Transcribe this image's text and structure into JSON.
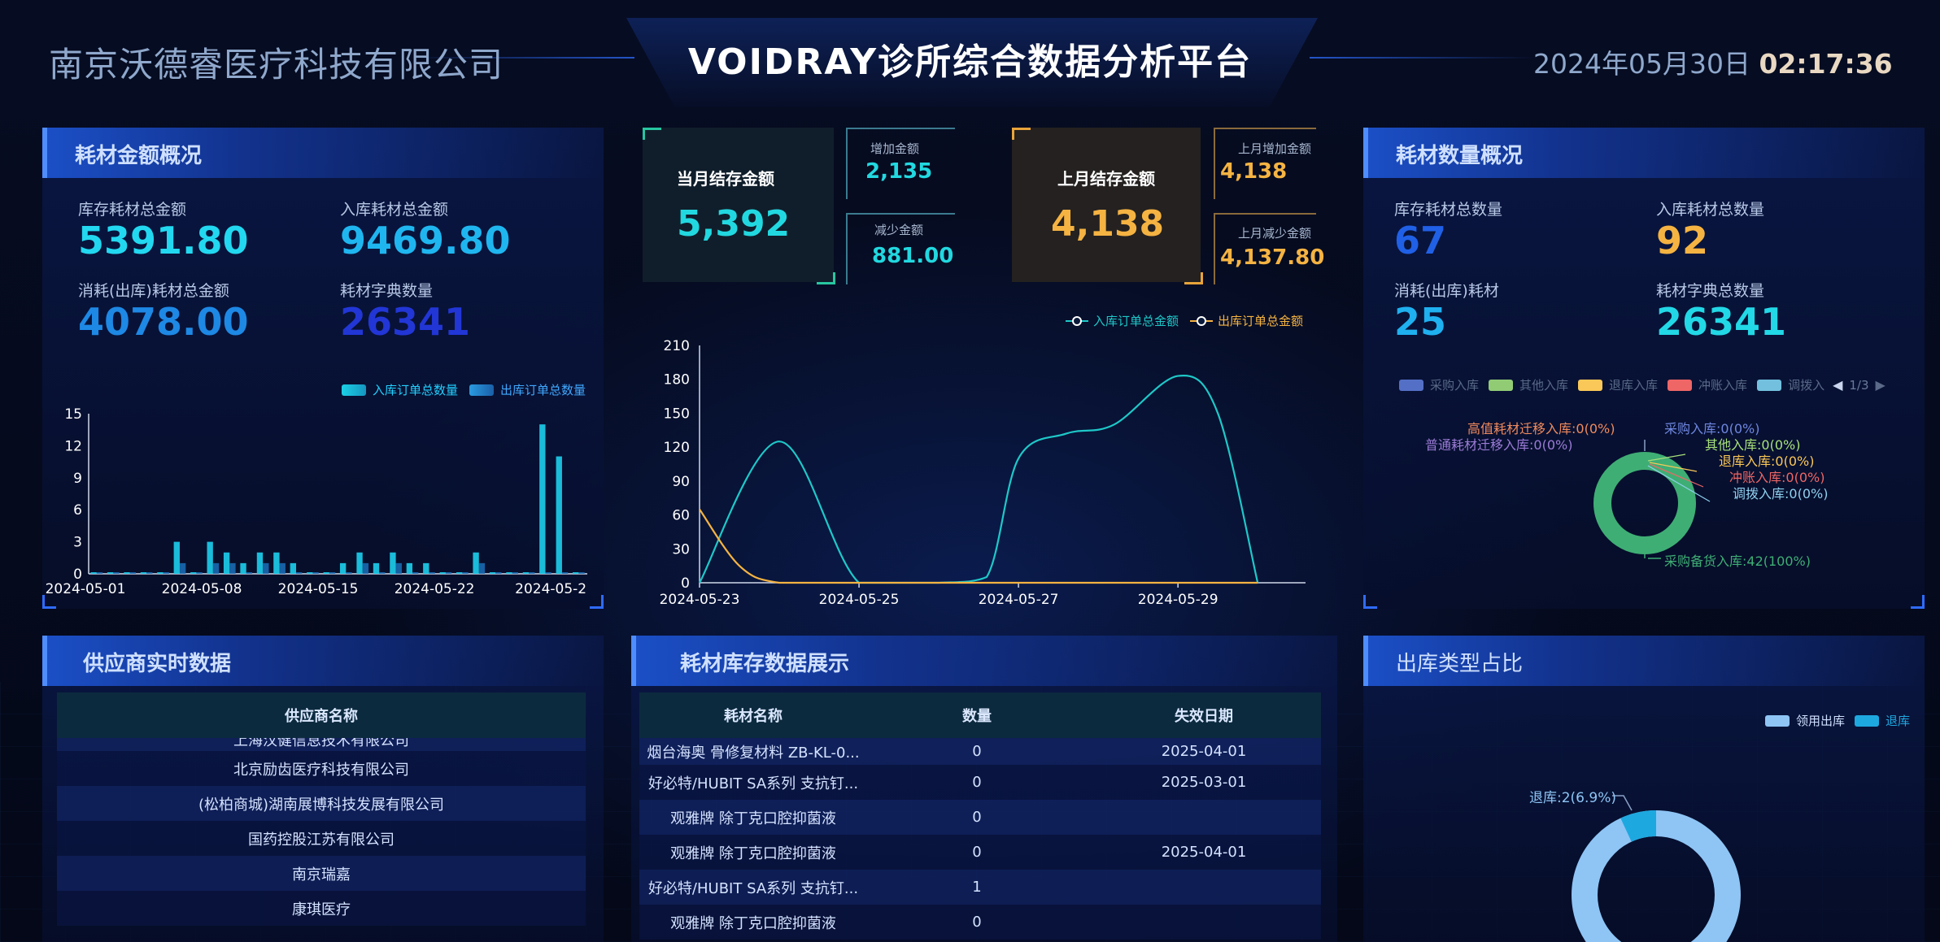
{
  "header": {
    "company": "南京沃德睿医疗科技有限公司",
    "title": "VOIDRAY诊所综合数据分析平台",
    "date": "2024年05月30日",
    "time": "02:17:36"
  },
  "left_top": {
    "title": "耗材金额概况",
    "stats": [
      {
        "label": "库存耗材总金额",
        "value": "5391.80",
        "color": "#22d8f0"
      },
      {
        "label": "入库耗材总金额",
        "value": "9469.80",
        "color": "#1fb6f0"
      },
      {
        "label": "消耗(出库)耗材总金额",
        "value": "4078.00",
        "color": "#1e88e5"
      },
      {
        "label": "耗材字典数量",
        "value": "26341",
        "color": "#2236d6"
      }
    ],
    "legend": [
      "入库订单总数量",
      "出库订单总数量"
    ]
  },
  "bar_chart_data": {
    "type": "bar",
    "x_ticks": [
      "2024-05-01",
      "2024-05-08",
      "2024-05-15",
      "2024-05-22",
      "2024-05-2"
    ],
    "y_ticks": [
      "15",
      "12",
      "9",
      "6",
      "3",
      "0"
    ],
    "ylim": [
      0,
      15
    ],
    "days": 30,
    "series": [
      {
        "name": "入库订单总数量",
        "values": [
          0,
          0,
          0,
          0,
          0,
          3,
          0,
          3,
          2,
          1,
          2,
          2,
          1,
          0,
          0,
          1,
          2,
          1,
          2,
          1,
          1,
          0,
          0,
          2,
          0,
          0,
          0,
          14,
          11,
          0
        ]
      },
      {
        "name": "出库订单总数量",
        "values": [
          0,
          0,
          0,
          0,
          0,
          1,
          0,
          1,
          1,
          0,
          1,
          1,
          0,
          0,
          0,
          0,
          1,
          0,
          1,
          0,
          0,
          0,
          0,
          1,
          0,
          0,
          0,
          0,
          0,
          0
        ]
      }
    ]
  },
  "center_kpi": {
    "current_title": "当月结存金额",
    "current_value": "5,392",
    "increase_label": "增加金额",
    "increase_value": "2,135",
    "decrease_label": "减少金额",
    "decrease_value": "881.00",
    "last_title": "上月结存金额",
    "last_value": "4,138",
    "last_increase_label": "上月增加金额",
    "last_increase_value": "4,138",
    "last_decrease_label": "上月减少金额",
    "last_decrease_value": "4,137.80"
  },
  "chart_data": {
    "type": "line",
    "legend": [
      "入库订单总金额",
      "出库订单总金额"
    ],
    "x_ticks": [
      "2024-05-23",
      "2024-05-25",
      "2024-05-27",
      "2024-05-29"
    ],
    "y_ticks": [
      "210",
      "180",
      "150",
      "120",
      "90",
      "60",
      "30",
      "0"
    ],
    "ylim": [
      0,
      210
    ],
    "series": [
      {
        "name": "入库订单总金额",
        "color": "#1ec8c8",
        "x": [
          23,
          24,
          25,
          26,
          26.6,
          27,
          27.6,
          28.2,
          29,
          29.5,
          30.0
        ],
        "y": [
          0,
          125,
          0,
          0,
          5,
          110,
          132,
          140,
          183,
          150,
          0
        ]
      },
      {
        "name": "出库订单总金额",
        "color": "#f5b342",
        "x": [
          23,
          23.5,
          24,
          25,
          26,
          27,
          28,
          29,
          30
        ],
        "y": [
          65,
          15,
          0,
          0,
          0,
          0,
          0,
          0,
          0
        ]
      }
    ]
  },
  "right_top": {
    "title": "耗材数量概况",
    "stats": [
      {
        "label": "库存耗材总数量",
        "value": "67",
        "color": "#2060e6"
      },
      {
        "label": "入库耗材总数量",
        "value": "92",
        "color": "#f5b342"
      },
      {
        "label": "消耗(出库)耗材",
        "value": "25",
        "color": "#1fb0f0"
      },
      {
        "label": "耗材字典总数量",
        "value": "26341",
        "color": "#22d8e6"
      }
    ],
    "legend": [
      {
        "name": "采购入库",
        "color": "#5470c6"
      },
      {
        "name": "其他入库",
        "color": "#91cc75"
      },
      {
        "name": "退库入库",
        "color": "#fac858"
      },
      {
        "name": "冲账入库",
        "color": "#ee6666"
      },
      {
        "name": "调拨入",
        "color": "#73c0de"
      }
    ],
    "pager": "1/3",
    "donut_labels": [
      {
        "text": "高值耗材迁移入库:0(0%)",
        "color": "#f08a5d"
      },
      {
        "text": "普通耗材迁移入库:0(0%)",
        "color": "#9b7bd6"
      },
      {
        "text": "采购入库:0(0%)",
        "color": "#6f86e0"
      },
      {
        "text": "其他入库:0(0%)",
        "color": "#a8e07a"
      },
      {
        "text": "退库入库:0(0%)",
        "color": "#fac858"
      },
      {
        "text": "冲账入库:0(0%)",
        "color": "#ee6666"
      },
      {
        "text": "调拨入库:0(0%)",
        "color": "#8fd0ee"
      },
      {
        "text": "采购备货入库:42(100%)",
        "color": "#3fae74"
      }
    ]
  },
  "supplier": {
    "title": "供应商实时数据",
    "column": "供应商名称",
    "rows": [
      "上海汉健信息技术有限公司",
      "北京励齿医疗科技有限公司",
      "(松柏商城)湖南展博科技发展有限公司",
      "国药控股江苏有限公司",
      "南京瑞嘉",
      "康琪医疗"
    ]
  },
  "inventory": {
    "title": "耗材库存数据展示",
    "columns": [
      "耗材名称",
      "数量",
      "失效日期"
    ],
    "rows": [
      [
        "烟台海奥 骨修复材料 ZB-KL-0...",
        "0",
        "2025-04-01"
      ],
      [
        "好必特/HUBIT SA系列 支抗钉...",
        "0",
        "2025-03-01"
      ],
      [
        "观雅牌 除丁克口腔抑菌液",
        "0",
        ""
      ],
      [
        "观雅牌 除丁克口腔抑菌液",
        "0",
        "2025-04-01"
      ],
      [
        "好必特/HUBIT SA系列 支抗钉...",
        "1",
        ""
      ],
      [
        "观雅牌 除丁克口腔抑菌液",
        "0",
        ""
      ]
    ]
  },
  "outbound": {
    "title": "出库类型占比",
    "legend": [
      {
        "name": "领用出库",
        "color": "#8ec5f5"
      },
      {
        "name": "退库",
        "color": "#1ea8e0"
      }
    ],
    "label": "退库:2(6.9%)",
    "share_percent": 6.9
  }
}
